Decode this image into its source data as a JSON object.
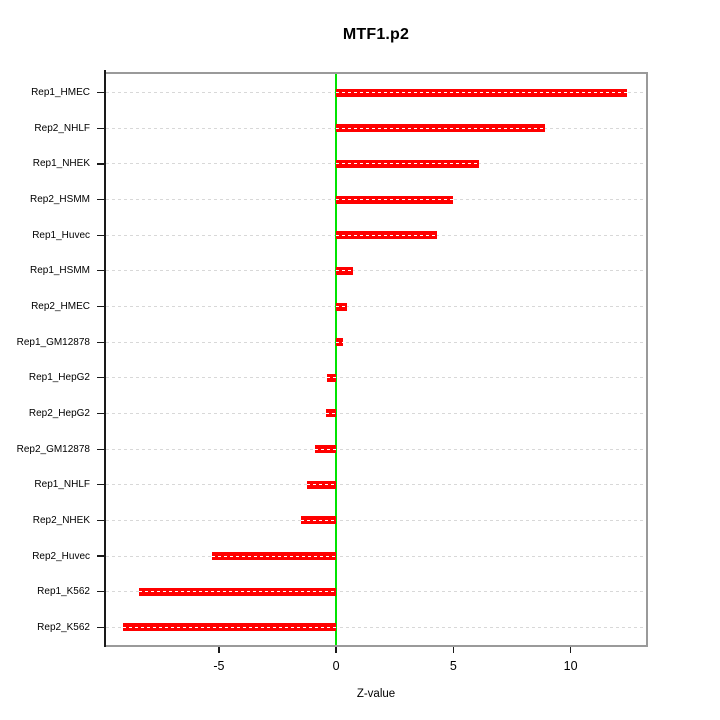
{
  "figure": {
    "title": "MTF1.p2",
    "xlabel": "Z-value"
  },
  "chart_data": {
    "type": "bar",
    "orientation": "horizontal",
    "title": "MTF1.p2",
    "xlabel": "Z-value",
    "ylabel": "",
    "categories": [
      "Rep1_HMEC",
      "Rep2_NHLF",
      "Rep1_NHEK",
      "Rep2_HSMM",
      "Rep1_Huvec",
      "Rep1_HSMM",
      "Rep2_HMEC",
      "Rep1_GM12878",
      "Rep1_HepG2",
      "Rep2_HepG2",
      "Rep2_GM12878",
      "Rep1_NHLF",
      "Rep2_NHEK",
      "Rep2_Huvec",
      "Rep1_K562",
      "Rep2_K562"
    ],
    "values": [
      12.4,
      8.9,
      6.1,
      5.0,
      4.3,
      0.7,
      0.45,
      0.3,
      -0.4,
      -0.45,
      -0.9,
      -1.25,
      -1.5,
      -5.3,
      -8.4,
      -9.1
    ],
    "xticks": [
      -5,
      0,
      5,
      10
    ],
    "xlim": [
      -9.9,
      13.3
    ],
    "zero_line_at": 0,
    "grid": true,
    "legend_position": "none",
    "colors": {
      "bar": "#ff0000",
      "zero_line": "#00e400",
      "grid": "#d8d8d8",
      "grid_on_bar": "#ffffff",
      "box": "#9a9a9a",
      "axis": "#1a1a1a",
      "text": "#000000"
    }
  }
}
